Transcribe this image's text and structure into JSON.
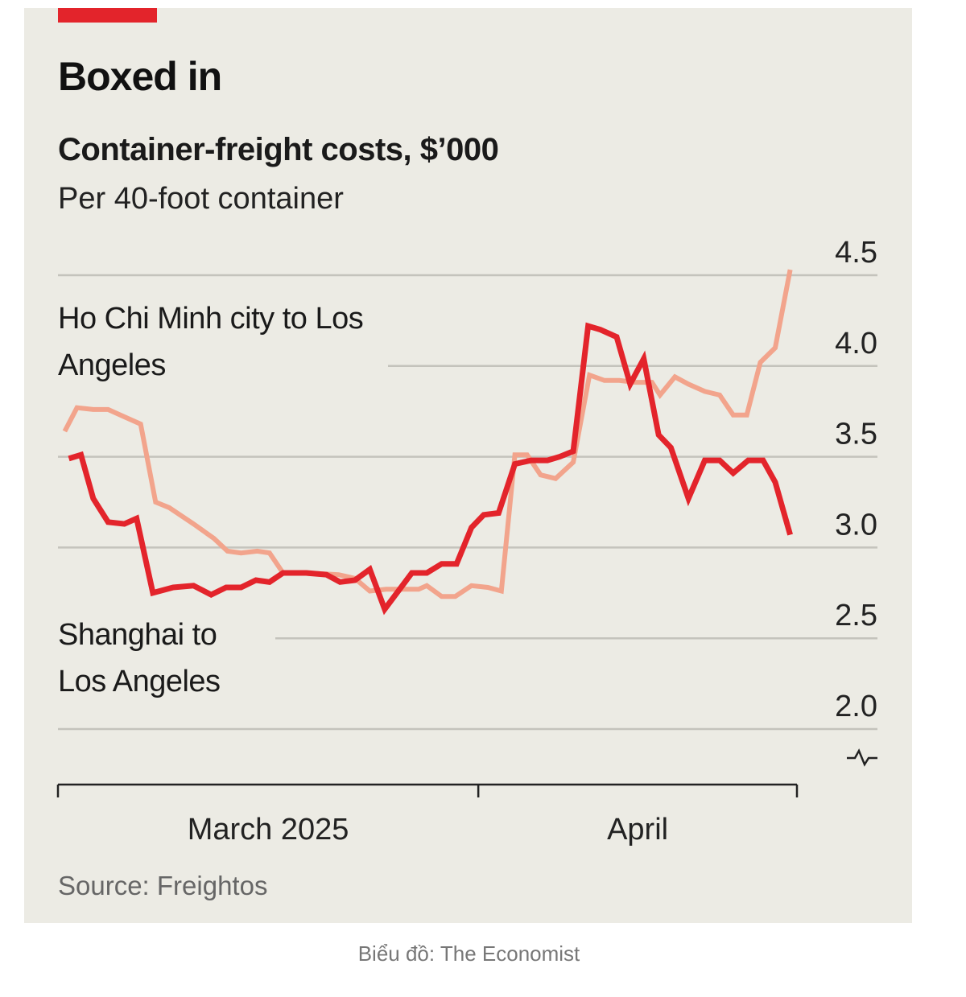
{
  "chart_data": {
    "type": "line",
    "title": "Boxed in",
    "subtitle": "Container-freight costs, $’000",
    "note": "Per 40-foot container",
    "source": "Source: Freightos",
    "xlim": [
      0,
      54.5
    ],
    "periods": [
      {
        "label": "March 2025",
        "start": 0,
        "end": 31
      },
      {
        "label": "April",
        "start": 31,
        "end": 54.5
      }
    ],
    "ylim": [
      2.0,
      4.5
    ],
    "yticks": [
      {
        "value": 2,
        "label": "2.0"
      },
      {
        "value": 2.5,
        "label": "2.5"
      },
      {
        "value": 3,
        "label": "3.0"
      },
      {
        "value": 3.5,
        "label": "3.5"
      },
      {
        "value": 4,
        "label": "4.0"
      },
      {
        "value": 4.5,
        "label": "4.5"
      }
    ],
    "grid": true,
    "series": [
      {
        "name": "Ho Chi Minh city to Los Angeles",
        "color": "#f2a48c",
        "x": [
          0.5,
          1.4,
          2.6,
          3.7,
          4.9,
          6.1,
          7.2,
          8.2,
          10.0,
          11.5,
          12.5,
          13.5,
          14.7,
          15.6,
          16.6,
          18.3,
          20.7,
          21.9,
          23.0,
          24.2,
          25.4,
          26.6,
          27.2,
          28.3,
          29.3,
          30.5,
          31.7,
          32.7,
          33.7,
          34.6,
          35.6,
          36.7,
          38.0,
          39.2,
          40.3,
          41.4,
          42.6,
          43.8,
          44.4,
          45.5,
          46.5,
          47.7,
          48.8,
          49.8,
          50.8,
          51.8,
          52.9,
          54.0
        ],
        "values": [
          3.64,
          3.77,
          3.76,
          3.76,
          3.72,
          3.68,
          3.25,
          3.22,
          3.13,
          3.05,
          2.98,
          2.97,
          2.98,
          2.97,
          2.86,
          2.86,
          2.85,
          2.83,
          2.76,
          2.77,
          2.77,
          2.77,
          2.79,
          2.73,
          2.73,
          2.79,
          2.78,
          2.76,
          3.51,
          3.51,
          3.4,
          3.38,
          3.47,
          3.95,
          3.92,
          3.92,
          3.91,
          3.91,
          3.84,
          3.94,
          3.9,
          3.86,
          3.84,
          3.73,
          3.73,
          4.02,
          4.1,
          4.53
        ]
      },
      {
        "name": "Shanghai to Los Angeles",
        "color": "#e3242b",
        "x": [
          0.8,
          1.7,
          2.6,
          3.7,
          4.9,
          5.8,
          7.0,
          8.5,
          10.0,
          11.3,
          12.4,
          13.5,
          14.6,
          15.6,
          16.6,
          18.3,
          19.8,
          20.8,
          21.9,
          23.0,
          24.1,
          25.1,
          26.1,
          27.2,
          28.3,
          29.4,
          30.5,
          31.4,
          32.5,
          33.7,
          34.9,
          36.1,
          37.0,
          38.0,
          39.1,
          40.0,
          41.2,
          42.2,
          43.2,
          44.3,
          45.2,
          46.5,
          47.7,
          48.8,
          49.8,
          50.9,
          52.0,
          52.9,
          54.0
        ],
        "values": [
          3.49,
          3.51,
          3.27,
          3.14,
          3.13,
          3.16,
          2.75,
          2.78,
          2.79,
          2.74,
          2.78,
          2.78,
          2.82,
          2.81,
          2.86,
          2.86,
          2.85,
          2.81,
          2.82,
          2.88,
          2.66,
          2.76,
          2.86,
          2.86,
          2.91,
          2.91,
          3.11,
          3.18,
          3.19,
          3.46,
          3.48,
          3.48,
          3.5,
          3.53,
          4.22,
          4.2,
          4.16,
          3.9,
          4.04,
          3.62,
          3.55,
          3.27,
          3.48,
          3.48,
          3.41,
          3.48,
          3.48,
          3.36,
          3.07
        ]
      }
    ]
  },
  "caption": "Biểu đồ: The Economist"
}
